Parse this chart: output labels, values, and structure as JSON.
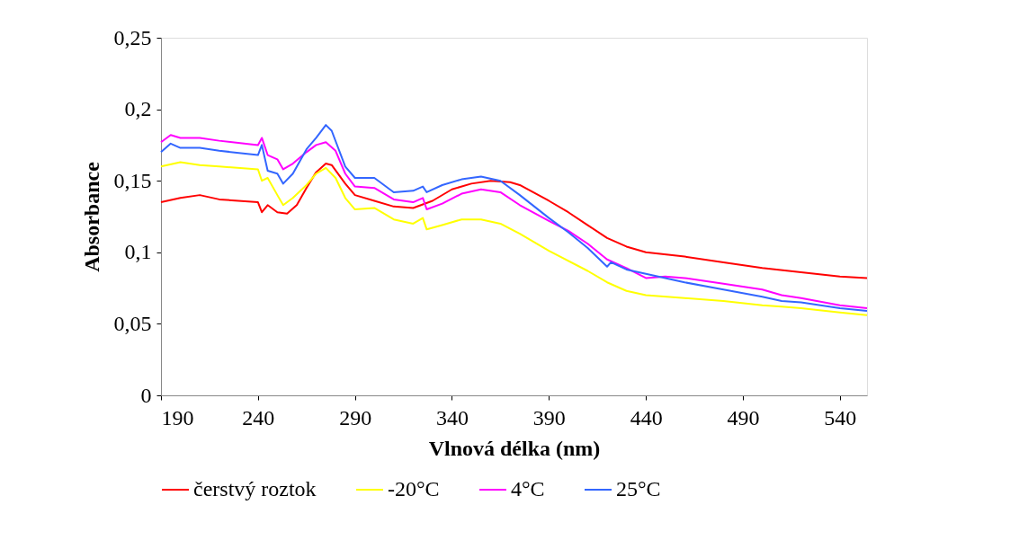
{
  "chart_data": {
    "type": "line",
    "xlabel": "Vlnová délka (nm)",
    "ylabel": "Absorbance",
    "xlim": [
      190,
      554
    ],
    "xticks": [
      190,
      240,
      290,
      340,
      390,
      440,
      490,
      540
    ],
    "ylim": [
      0,
      0.25
    ],
    "yticks": [
      {
        "value": 0,
        "label": "0"
      },
      {
        "value": 0.05,
        "label": "0,05"
      },
      {
        "value": 0.1,
        "label": "0,1"
      },
      {
        "value": 0.15,
        "label": "0,15"
      },
      {
        "value": 0.2,
        "label": "0,2"
      },
      {
        "value": 0.25,
        "label": "0,25"
      }
    ],
    "grid": false,
    "legend": "bottom",
    "marker": "none",
    "line_style": "solid",
    "series": [
      {
        "name": "čerstvý roztok",
        "color": "#ff0000",
        "x": [
          190,
          200,
          210,
          220,
          240,
          242,
          245,
          250,
          255,
          260,
          265,
          270,
          275,
          278,
          285,
          290,
          300,
          310,
          320,
          330,
          340,
          350,
          360,
          370,
          375,
          390,
          400,
          410,
          420,
          430,
          440,
          460,
          480,
          500,
          520,
          540,
          554
        ],
        "values": [
          0.135,
          0.138,
          0.14,
          0.137,
          0.135,
          0.128,
          0.133,
          0.128,
          0.127,
          0.133,
          0.145,
          0.156,
          0.162,
          0.161,
          0.148,
          0.14,
          0.136,
          0.132,
          0.131,
          0.136,
          0.144,
          0.148,
          0.15,
          0.149,
          0.147,
          0.136,
          0.128,
          0.119,
          0.11,
          0.104,
          0.1,
          0.097,
          0.093,
          0.089,
          0.086,
          0.083,
          0.082
        ]
      },
      {
        "name": "-20°C",
        "color": "#ffff00",
        "x": [
          190,
          200,
          210,
          220,
          240,
          242,
          245,
          250,
          253,
          258,
          265,
          270,
          275,
          280,
          285,
          290,
          300,
          310,
          320,
          325,
          327,
          335,
          345,
          355,
          365,
          375,
          390,
          410,
          420,
          430,
          440,
          460,
          480,
          500,
          510,
          520,
          540,
          554
        ],
        "values": [
          0.16,
          0.163,
          0.161,
          0.16,
          0.158,
          0.15,
          0.152,
          0.14,
          0.133,
          0.138,
          0.147,
          0.155,
          0.159,
          0.152,
          0.138,
          0.13,
          0.131,
          0.123,
          0.12,
          0.124,
          0.116,
          0.119,
          0.123,
          0.123,
          0.12,
          0.113,
          0.101,
          0.087,
          0.079,
          0.073,
          0.07,
          0.068,
          0.066,
          0.063,
          0.062,
          0.061,
          0.058,
          0.056
        ]
      },
      {
        "name": "4°C",
        "color": "#ff00ff",
        "x": [
          190,
          195,
          200,
          210,
          220,
          240,
          242,
          245,
          250,
          253,
          258,
          265,
          270,
          275,
          280,
          285,
          290,
          300,
          310,
          320,
          325,
          327,
          335,
          345,
          355,
          365,
          375,
          390,
          400,
          410,
          420,
          430,
          440,
          450,
          460,
          480,
          500,
          510,
          520,
          540,
          554
        ],
        "values": [
          0.177,
          0.182,
          0.18,
          0.18,
          0.178,
          0.175,
          0.18,
          0.168,
          0.165,
          0.158,
          0.162,
          0.17,
          0.175,
          0.177,
          0.171,
          0.155,
          0.146,
          0.145,
          0.137,
          0.135,
          0.138,
          0.13,
          0.134,
          0.141,
          0.144,
          0.142,
          0.133,
          0.122,
          0.115,
          0.106,
          0.095,
          0.089,
          0.082,
          0.083,
          0.082,
          0.078,
          0.074,
          0.07,
          0.068,
          0.063,
          0.061
        ]
      },
      {
        "name": "25°C",
        "color": "#3366ff",
        "x": [
          190,
          195,
          200,
          210,
          220,
          240,
          242,
          245,
          250,
          253,
          258,
          265,
          270,
          275,
          278,
          285,
          290,
          300,
          310,
          320,
          325,
          327,
          335,
          345,
          355,
          365,
          375,
          390,
          400,
          410,
          420,
          422,
          430,
          440,
          460,
          480,
          500,
          510,
          520,
          540,
          554
        ],
        "values": [
          0.17,
          0.176,
          0.173,
          0.173,
          0.171,
          0.168,
          0.175,
          0.157,
          0.155,
          0.148,
          0.155,
          0.172,
          0.18,
          0.189,
          0.185,
          0.16,
          0.152,
          0.152,
          0.142,
          0.143,
          0.146,
          0.142,
          0.147,
          0.151,
          0.153,
          0.15,
          0.14,
          0.124,
          0.114,
          0.103,
          0.09,
          0.093,
          0.088,
          0.085,
          0.079,
          0.074,
          0.069,
          0.066,
          0.065,
          0.061,
          0.059
        ]
      }
    ]
  }
}
